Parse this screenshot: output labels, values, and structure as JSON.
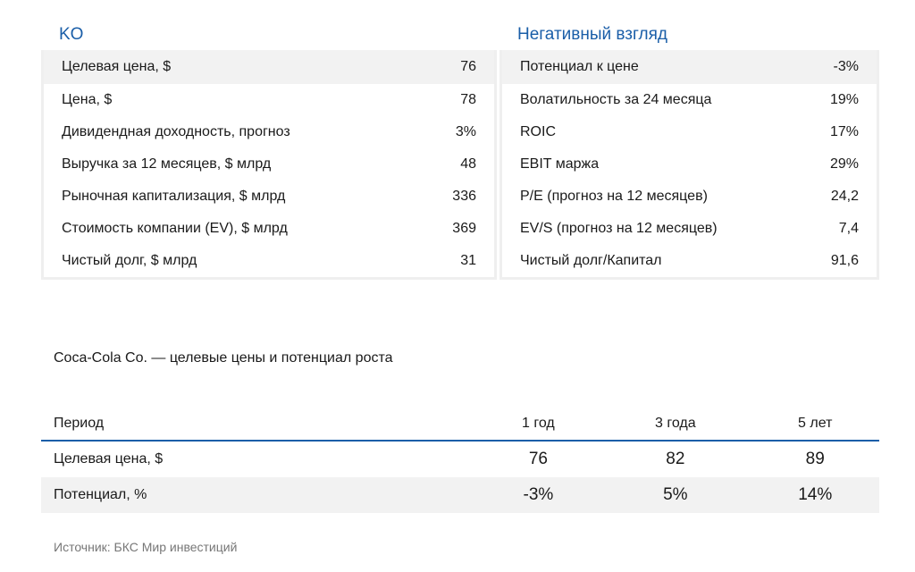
{
  "left_panel": {
    "title": "KO",
    "rows": [
      {
        "label": "Целевая цена, $",
        "value": "76"
      },
      {
        "label": "Цена, $",
        "value": "78"
      },
      {
        "label": "Дивидендная доходность, прогноз",
        "value": "3%"
      },
      {
        "label": "Выручка за 12 месяцев, $ млрд",
        "value": "48"
      },
      {
        "label": "Рыночная капитализация, $ млрд",
        "value": "336"
      },
      {
        "label": "Стоимость компании (EV), $ млрд",
        "value": "369"
      },
      {
        "label": "Чистый долг, $ млрд",
        "value": "31"
      }
    ]
  },
  "right_panel": {
    "title": "Негативный взгляд",
    "rows": [
      {
        "label": "Потенциал к цене",
        "value": "-3%"
      },
      {
        "label": "Волатильность за 24 месяца",
        "value": "19%"
      },
      {
        "label": "ROIC",
        "value": "17%"
      },
      {
        "label": "EBIT маржа",
        "value": "29%"
      },
      {
        "label": "P/E (прогноз на 12 месяцев)",
        "value": "24,2"
      },
      {
        "label": "EV/S (прогноз на 12 месяцев)",
        "value": "7,4"
      },
      {
        "label": "Чистый долг/Капитал",
        "value": "91,6"
      }
    ]
  },
  "targets": {
    "caption": "Coca-Cola Co. — целевые цены и потенциал роста",
    "headers": [
      "Период",
      "1 год",
      "3 года",
      "5 лет"
    ],
    "rows": [
      [
        "Целевая цена, $",
        "76",
        "82",
        "89"
      ],
      [
        "Потенциал, %",
        "-3%",
        "5%",
        "14%"
      ]
    ]
  },
  "source": "Источник: БКС Мир инвестиций",
  "colors": {
    "accent": "#1a5ea8",
    "row_shade": "#f2f2f2"
  }
}
